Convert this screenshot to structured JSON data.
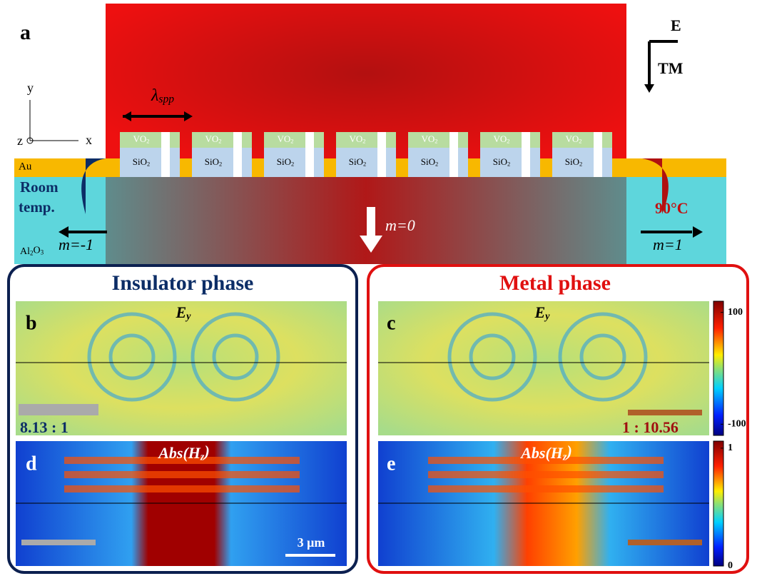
{
  "panel_a": {
    "label": "a",
    "field": "E",
    "mode": "TM",
    "axis_y": "y",
    "axis_z": "z",
    "axis_x": "x",
    "lambda": [
      "λ",
      "spp"
    ],
    "au": "Au",
    "room": "Room",
    "temp": "temp.",
    "hot": "90°C",
    "m_left": "m=-1",
    "m_center": "m=0",
    "m_right": "m=1",
    "substrate": [
      "Al",
      "2",
      "O",
      "3"
    ],
    "gratings": [
      {
        "top": [
          "VO",
          "2"
        ],
        "bottom": [
          "SiO",
          "2"
        ]
      },
      {
        "top": [
          "VO",
          "2"
        ],
        "bottom": [
          "SiO",
          "2"
        ]
      },
      {
        "top": [
          "VO",
          "2"
        ],
        "bottom": [
          "SiO",
          "2"
        ]
      },
      {
        "top": [
          "VO",
          "2"
        ],
        "bottom": [
          "SiO",
          "2"
        ]
      },
      {
        "top": [
          "VO",
          "2"
        ],
        "bottom": [
          "SiO",
          "2"
        ]
      },
      {
        "top": [
          "VO",
          "2"
        ],
        "bottom": [
          "SiO",
          "2"
        ]
      },
      {
        "top": [
          "VO",
          "2"
        ],
        "bottom": [
          "SiO",
          "2"
        ]
      }
    ]
  },
  "insulator": {
    "title": "Insulator phase",
    "b": "b",
    "d": "d",
    "ey": [
      "E",
      "y"
    ],
    "abs": [
      "Abs(H",
      "z",
      ")"
    ],
    "ratio": "8.13 : 1",
    "scale": "3 μm"
  },
  "metal": {
    "title": "Metal phase",
    "c": "c",
    "e": "e",
    "ey": [
      "E",
      "y"
    ],
    "abs": [
      "Abs(H",
      "z",
      ")"
    ],
    "ratio": "1 : 10.56"
  },
  "colorbar_e": {
    "ylim": [
      -120,
      120
    ],
    "yticks": [
      100,
      -100
    ]
  },
  "colorbar_h": {
    "ylim": [
      0,
      1.06
    ],
    "yticks": [
      1,
      0
    ]
  }
}
